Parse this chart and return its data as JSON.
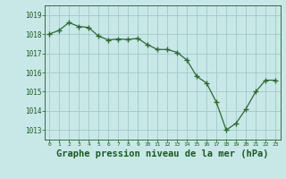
{
  "x": [
    0,
    1,
    2,
    3,
    4,
    5,
    6,
    7,
    8,
    9,
    10,
    11,
    12,
    13,
    14,
    15,
    16,
    17,
    18,
    19,
    20,
    21,
    22,
    23
  ],
  "y": [
    1018.0,
    1018.2,
    1018.6,
    1018.4,
    1018.35,
    1017.9,
    1017.7,
    1017.75,
    1017.72,
    1017.78,
    1017.45,
    1017.2,
    1017.2,
    1017.05,
    1016.65,
    1015.8,
    1015.45,
    1014.45,
    1013.0,
    1013.35,
    1014.1,
    1015.0,
    1015.6,
    1015.6
  ],
  "line_color": "#2d6a2d",
  "marker": "+",
  "marker_size": 4,
  "marker_color": "#2d6a2d",
  "bg_color": "#c8e8e8",
  "grid_color": "#a0c8c8",
  "xlabel": "Graphe pression niveau de la mer (hPa)",
  "xlabel_fontsize": 7.5,
  "xlabel_color": "#1a5c1a",
  "tick_color": "#1a5c1a",
  "ytick_labels": [
    1013,
    1014,
    1015,
    1016,
    1017,
    1018,
    1019
  ],
  "ylim": [
    1012.5,
    1019.5
  ],
  "xlim": [
    -0.5,
    23.5
  ],
  "xtick_labels": [
    "0",
    "1",
    "2",
    "3",
    "4",
    "5",
    "6",
    "7",
    "8",
    "9",
    "10",
    "11",
    "12",
    "13",
    "14",
    "15",
    "16",
    "17",
    "18",
    "19",
    "20",
    "21",
    "22",
    "23"
  ]
}
